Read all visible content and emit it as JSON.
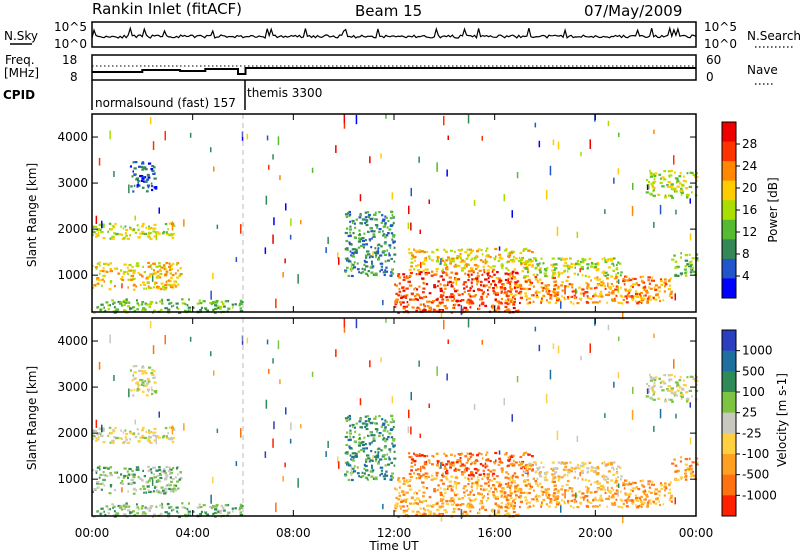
{
  "header": {
    "station": "Rankin Inlet (fitACF)",
    "beam": "Beam 15",
    "date": "07/May/2009"
  },
  "noise_panel": {
    "left_label": "N.Sky",
    "right_label": "N.Search",
    "y_ticks_left": [
      "10^5",
      "10^0"
    ],
    "y_ticks_right": [
      "10^5",
      "10^0"
    ]
  },
  "freq_panel": {
    "left_label_1": "Freq.",
    "left_label_2": "[MHz]",
    "right_label": "Nave",
    "y_ticks_left": [
      "18",
      "8"
    ],
    "y_ticks_right": [
      "60",
      "0"
    ]
  },
  "cpid_panel": {
    "label": "CPID",
    "mode_1": "normalsound (fast) 157",
    "mode_2": "themis 3300"
  },
  "x_axis": {
    "label": "Time UT",
    "ticks": [
      "00:00",
      "04:00",
      "08:00",
      "12:00",
      "16:00",
      "20:00",
      "00:00"
    ]
  },
  "power_panel": {
    "ylabel": "Slant Range [km]",
    "y_ticks": [
      "1000",
      "2000",
      "3000",
      "4000"
    ],
    "colorbar_label": "Power [dB]",
    "colorbar_ticks": [
      "4",
      "8",
      "12",
      "16",
      "20",
      "24",
      "28"
    ],
    "colors": [
      "#0000ff",
      "#2255cc",
      "#338855",
      "#55bb33",
      "#aadd00",
      "#ffcc00",
      "#ff8800",
      "#ff3300",
      "#ee0000"
    ]
  },
  "velocity_panel": {
    "ylabel": "Slant Range [km]",
    "y_ticks": [
      "1000",
      "2000",
      "3000",
      "4000"
    ],
    "colorbar_label": "Velocity [m s-1]",
    "colorbar_ticks": [
      "1000",
      "500",
      "100",
      "25",
      "-25",
      "-100",
      "-500",
      "-1000"
    ],
    "colors": [
      "#2a3fbf",
      "#1e6fa0",
      "#2e8b57",
      "#7cc442",
      "#c8c8c0",
      "#ffd040",
      "#ffa020",
      "#ff7010",
      "#ff2000"
    ]
  },
  "chart_data": {
    "type": "heatmap",
    "x_range_hours": [
      0,
      24
    ],
    "y_range_km": [
      200,
      4500
    ],
    "mode_change_hour": 6,
    "scatter_regions": [
      {
        "t0": 0.0,
        "t1": 3.5,
        "r0": 700,
        "r1": 1300,
        "power_level": 5,
        "velocity_level": 3
      },
      {
        "t0": 0.0,
        "t1": 3.3,
        "r0": 1800,
        "r1": 2150,
        "power_level": 4,
        "velocity_level": 4
      },
      {
        "t0": 0.0,
        "t1": 6.0,
        "r0": 200,
        "r1": 500,
        "power_level": 3,
        "velocity_level": 3
      },
      {
        "t0": 1.5,
        "t1": 2.5,
        "r0": 2800,
        "r1": 3500,
        "power_level": 1,
        "velocity_level": 4
      },
      {
        "t0": 10.0,
        "t1": 12.0,
        "r0": 1000,
        "r1": 2400,
        "power_level": 2,
        "velocity_level": 2
      },
      {
        "t0": 12.0,
        "t1": 17.0,
        "r0": 200,
        "r1": 1100,
        "power_level": 7,
        "velocity_level": 6
      },
      {
        "t0": 12.5,
        "t1": 17.5,
        "r0": 1100,
        "r1": 1600,
        "power_level": 5,
        "velocity_level": 7
      },
      {
        "t0": 16.0,
        "t1": 23.0,
        "r0": 400,
        "r1": 1000,
        "power_level": 6,
        "velocity_level": 6
      },
      {
        "t0": 17.0,
        "t1": 21.0,
        "r0": 1000,
        "r1": 1400,
        "power_level": 4,
        "velocity_level": 5
      },
      {
        "t0": 22.0,
        "t1": 24.0,
        "r0": 2700,
        "r1": 3300,
        "power_level": 4,
        "velocity_level": 4
      },
      {
        "t0": 23.0,
        "t1": 24.0,
        "r0": 1000,
        "r1": 1500,
        "power_level": 3,
        "velocity_level": 6
      }
    ]
  }
}
